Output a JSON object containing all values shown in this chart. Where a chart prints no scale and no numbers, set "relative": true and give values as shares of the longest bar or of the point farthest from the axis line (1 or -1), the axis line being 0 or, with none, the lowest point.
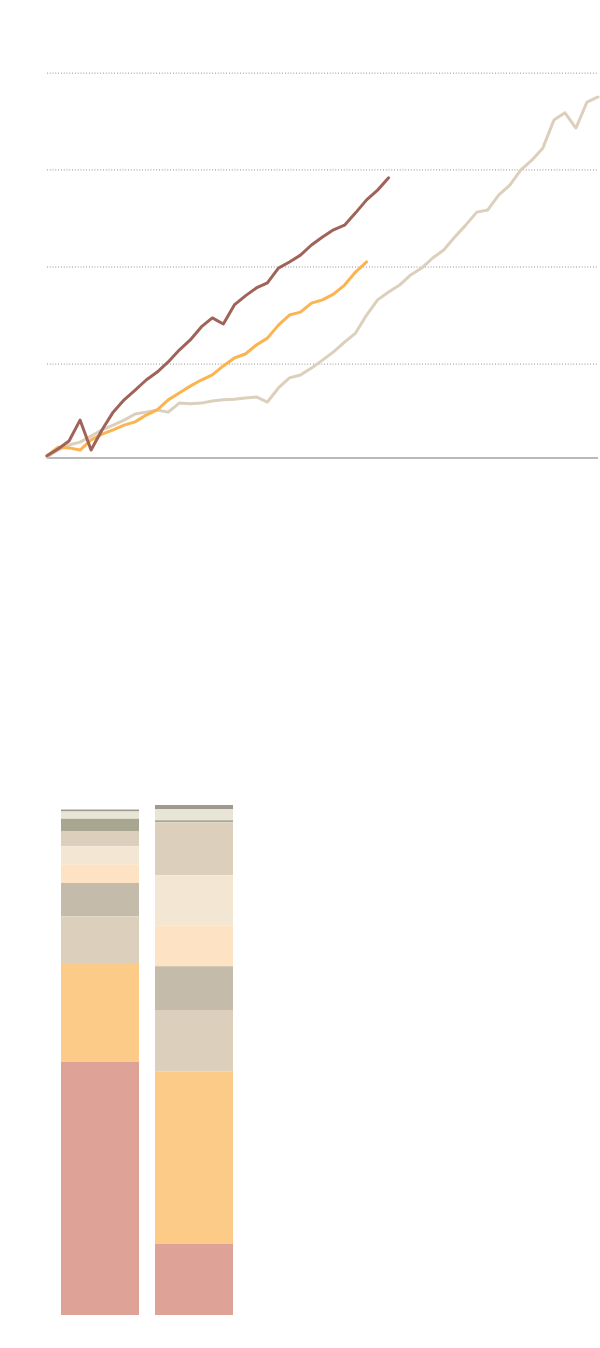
{
  "chart_data": [
    {
      "type": "line",
      "relative": true,
      "marker": "none",
      "line_style": "solid",
      "categories": [
        null,
        null,
        null,
        null,
        null,
        null,
        null,
        null,
        null,
        null,
        null,
        null,
        null,
        null,
        null,
        null,
        null,
        null,
        null,
        null,
        null,
        null,
        null,
        null,
        null,
        null,
        null,
        null,
        null,
        null,
        null,
        null,
        null,
        null,
        null,
        null,
        null,
        null,
        null,
        null,
        null,
        null,
        null,
        null,
        null,
        null,
        null,
        null,
        null,
        null,
        null
      ],
      "series": [
        {
          "color": "#dcd0bc",
          "values": [
            0.003,
            0.022,
            0.036,
            0.044,
            0.061,
            0.078,
            0.091,
            0.105,
            0.122,
            0.127,
            0.133,
            0.127,
            0.152,
            0.15,
            0.152,
            0.158,
            0.161,
            0.163,
            0.166,
            0.169,
            0.155,
            0.194,
            0.222,
            0.23,
            0.249,
            0.271,
            0.294,
            0.321,
            0.346,
            0.396,
            0.438,
            0.46,
            0.479,
            0.507,
            0.526,
            0.554,
            0.576,
            0.612,
            0.645,
            0.681,
            0.687,
            0.729,
            0.756,
            0.798,
            0.825,
            0.859,
            0.936,
            0.956,
            0.914,
            0.986,
            1
          ]
        },
        {
          "color": "#fbb450",
          "values": [
            0.006,
            0.03,
            0.028,
            0.022,
            0.05,
            0.066,
            0.078,
            0.091,
            0.1,
            0.119,
            0.133,
            0.161,
            0.18,
            0.199,
            0.216,
            0.23,
            0.255,
            0.277,
            0.288,
            0.313,
            0.332,
            0.368,
            0.396,
            0.404,
            0.429,
            0.438,
            0.454,
            0.479,
            0.515,
            0.543,
            null,
            null,
            null,
            null,
            null,
            null,
            null,
            null,
            null,
            null,
            null,
            null,
            null,
            null,
            null,
            null,
            null,
            null,
            null,
            null,
            null
          ]
        },
        {
          "color": "#a0635a",
          "values": [
            0.006,
            0.025,
            0.047,
            0.105,
            0.022,
            0.078,
            0.127,
            0.161,
            0.188,
            0.216,
            0.238,
            0.266,
            0.299,
            0.327,
            0.363,
            0.388,
            0.371,
            0.424,
            0.449,
            0.471,
            0.485,
            0.526,
            0.543,
            0.562,
            0.59,
            0.612,
            0.632,
            0.645,
            0.679,
            0.715,
            0.742,
            0.776,
            null,
            null,
            null,
            null,
            null,
            null,
            null,
            null,
            null,
            null,
            null,
            null,
            null,
            null,
            null,
            null,
            null,
            null,
            null
          ]
        }
      ],
      "ref_lines": [
        {
          "axis": "y",
          "value": 0.26,
          "color": "#555555",
          "line_style": "dotted"
        },
        {
          "axis": "y",
          "value": 0.529,
          "color": "#555555",
          "line_style": "dotted"
        },
        {
          "axis": "y",
          "value": 0.798,
          "color": "#555555",
          "line_style": "dotted"
        },
        {
          "axis": "y",
          "value": 1.066,
          "color": "#555555",
          "line_style": "dotted"
        }
      ]
    },
    {
      "type": "bar",
      "relative": true,
      "stacked": true,
      "categories": [
        null,
        null
      ],
      "series": [
        {
          "color": "#dea396",
          "values": [
            0.496,
            0.139
          ]
        },
        {
          "color": "#fccb88",
          "values": [
            0.194,
            0.339
          ]
        },
        {
          "color": "#dcd0bc",
          "values": [
            0.092,
            0.12
          ]
        },
        {
          "color": "#c4bbaa",
          "values": [
            0.065,
            0.086
          ]
        },
        {
          "color": "#fde3c3",
          "values": [
            0.037,
            0.08
          ]
        },
        {
          "color": "#f3e6d3",
          "values": [
            0.035,
            0.098
          ]
        },
        {
          "color": "#dcd0bc",
          "values": [
            0.029,
            0.104
          ]
        },
        {
          "color": "#a8a690",
          "values": [
            0.025,
            0.004
          ]
        },
        {
          "color": "#e8e5d6",
          "values": [
            0.014,
            0.022
          ]
        },
        {
          "color": "#a09a8e",
          "values": [
            0.004,
            0.008
          ]
        }
      ]
    }
  ]
}
